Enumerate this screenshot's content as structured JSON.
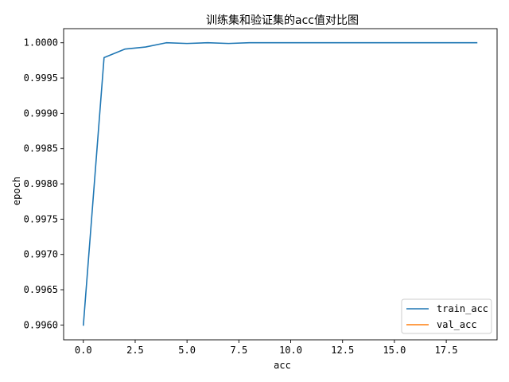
{
  "chart_data": {
    "type": "line",
    "title": "训练集和验证集的acc值对比图",
    "xlabel": "acc",
    "ylabel": "epoch",
    "xlim": [
      -0.95,
      19.95
    ],
    "ylim": [
      0.99579,
      1.0002
    ],
    "xticks": [
      0.0,
      2.5,
      5.0,
      7.5,
      10.0,
      12.5,
      15.0,
      17.5
    ],
    "xtick_labels": [
      "0.0",
      "2.5",
      "5.0",
      "7.5",
      "10.0",
      "12.5",
      "15.0",
      "17.5"
    ],
    "yticks": [
      0.996,
      0.9965,
      0.997,
      0.9975,
      0.998,
      0.9985,
      0.999,
      0.9995,
      1.0
    ],
    "ytick_labels": [
      "0.9960",
      "0.9965",
      "0.9970",
      "0.9975",
      "0.9980",
      "0.9985",
      "0.9990",
      "0.9995",
      "1.0000"
    ],
    "grid": false,
    "legend_position": "lower-right",
    "series": [
      {
        "name": "train_acc",
        "color": "#1f77b4",
        "x": [
          0,
          1,
          2,
          3,
          4,
          5,
          6,
          7,
          8,
          9,
          10,
          11,
          12,
          13,
          14,
          15,
          16,
          17,
          18,
          19
        ],
        "values": [
          0.99599,
          0.99979,
          0.99991,
          0.99994,
          1.0,
          0.99999,
          1.0,
          0.99999,
          1.0,
          1.0,
          1.0,
          1.0,
          1.0,
          1.0,
          1.0,
          1.0,
          1.0,
          1.0,
          1.0,
          1.0
        ]
      },
      {
        "name": "val_acc",
        "color": "#ff7f0e",
        "x": [],
        "values": []
      }
    ]
  }
}
